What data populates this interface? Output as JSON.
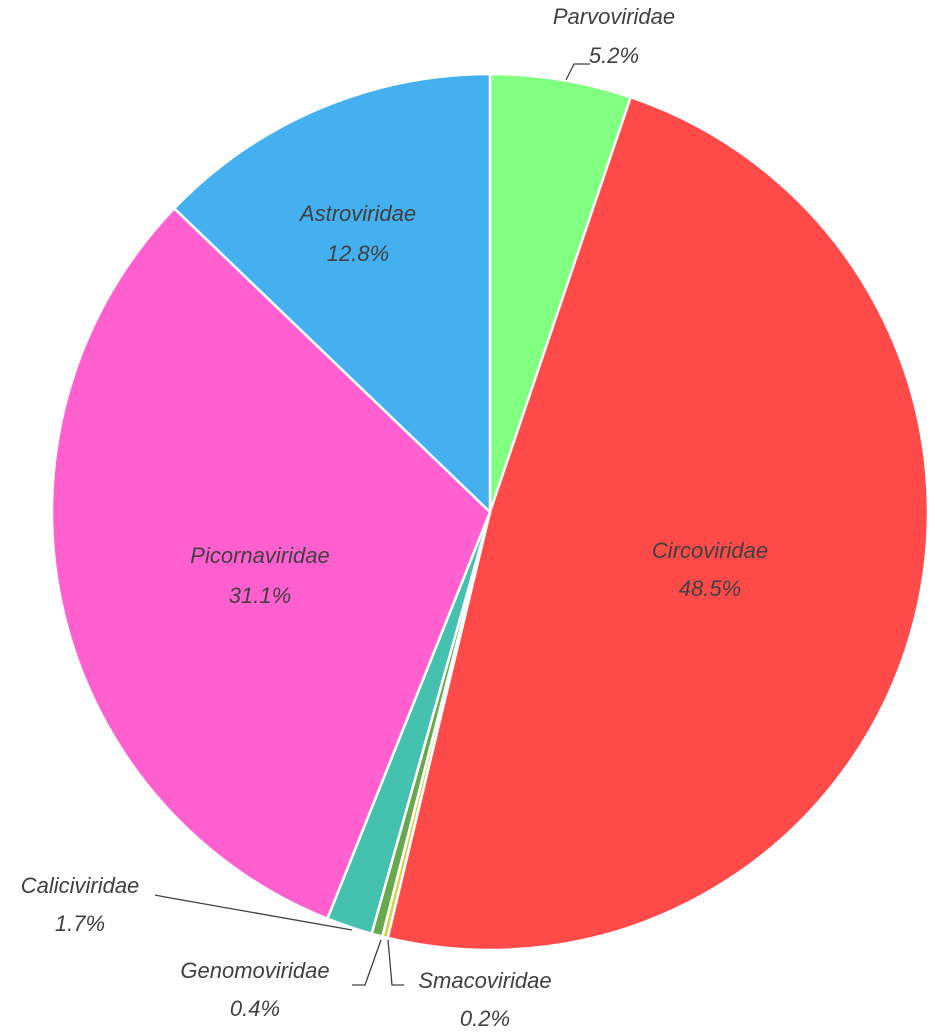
{
  "chart_data": {
    "type": "pie",
    "labels": [
      "Parvoviridae",
      "Circoviridae",
      "Smacoviridae",
      "Genomoviridae",
      "Caliciviridae",
      "Picornaviridae",
      "Astroviridae"
    ],
    "values": [
      5.2,
      48.5,
      0.2,
      0.4,
      1.7,
      31.1,
      12.8
    ],
    "value_labels": [
      "5.2%",
      "48.5%",
      "0.2%",
      "0.4%",
      "1.7%",
      "31.1%",
      "12.8%"
    ],
    "colors": [
      "#80ff80",
      "#ff4a4a",
      "#d6d24a",
      "#6aa84f",
      "#45c1b0",
      "#ff5fcf",
      "#45b0f0"
    ]
  }
}
